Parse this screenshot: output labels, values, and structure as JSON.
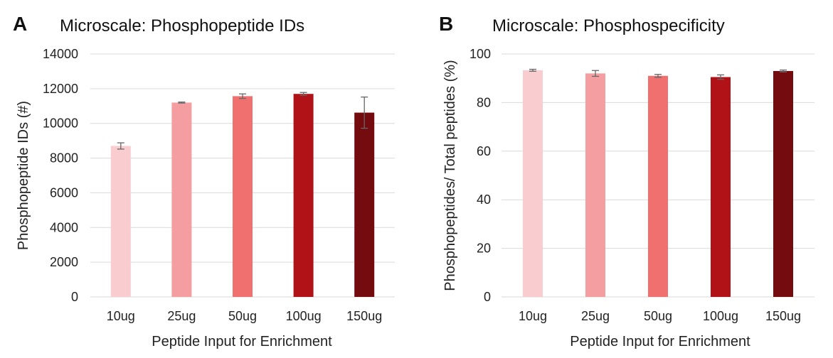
{
  "panels": [
    {
      "letter": "A"
    },
    {
      "letter": "B"
    }
  ],
  "chart_data": [
    {
      "type": "bar",
      "title": "Microscale: Phosphopeptide IDs",
      "xlabel": "Peptide Input for Enrichment",
      "ylabel": "Phosphopeptide IDs (#)",
      "ylim": [
        0,
        14000
      ],
      "yticks": [
        0,
        2000,
        4000,
        6000,
        8000,
        10000,
        12000,
        14000
      ],
      "grid": true,
      "categories": [
        "10ug",
        "25ug",
        "50ug",
        "100ug",
        "150ug"
      ],
      "values": [
        8700,
        11200,
        11570,
        11700,
        10620
      ],
      "error": [
        180,
        30,
        130,
        80,
        900
      ],
      "colors": [
        "#f9cccf",
        "#f59ea1",
        "#f07070",
        "#b01217",
        "#730b0f"
      ]
    },
    {
      "type": "bar",
      "title": "Microscale: Phosphospecificity",
      "xlabel": "Peptide Input for Enrichment",
      "ylabel": "Phosphopeptides/ Total peptides (%)",
      "ylim": [
        0,
        100
      ],
      "yticks": [
        0,
        20,
        40,
        60,
        80,
        100
      ],
      "grid": true,
      "categories": [
        "10ug",
        "25ug",
        "50ug",
        "100ug",
        "150ug"
      ],
      "values": [
        93.3,
        92.0,
        91.0,
        90.5,
        93.0
      ],
      "error": [
        0.4,
        1.2,
        0.6,
        0.9,
        0.4
      ],
      "colors": [
        "#f9cccf",
        "#f59ea1",
        "#f07070",
        "#b01217",
        "#730b0f"
      ]
    }
  ]
}
